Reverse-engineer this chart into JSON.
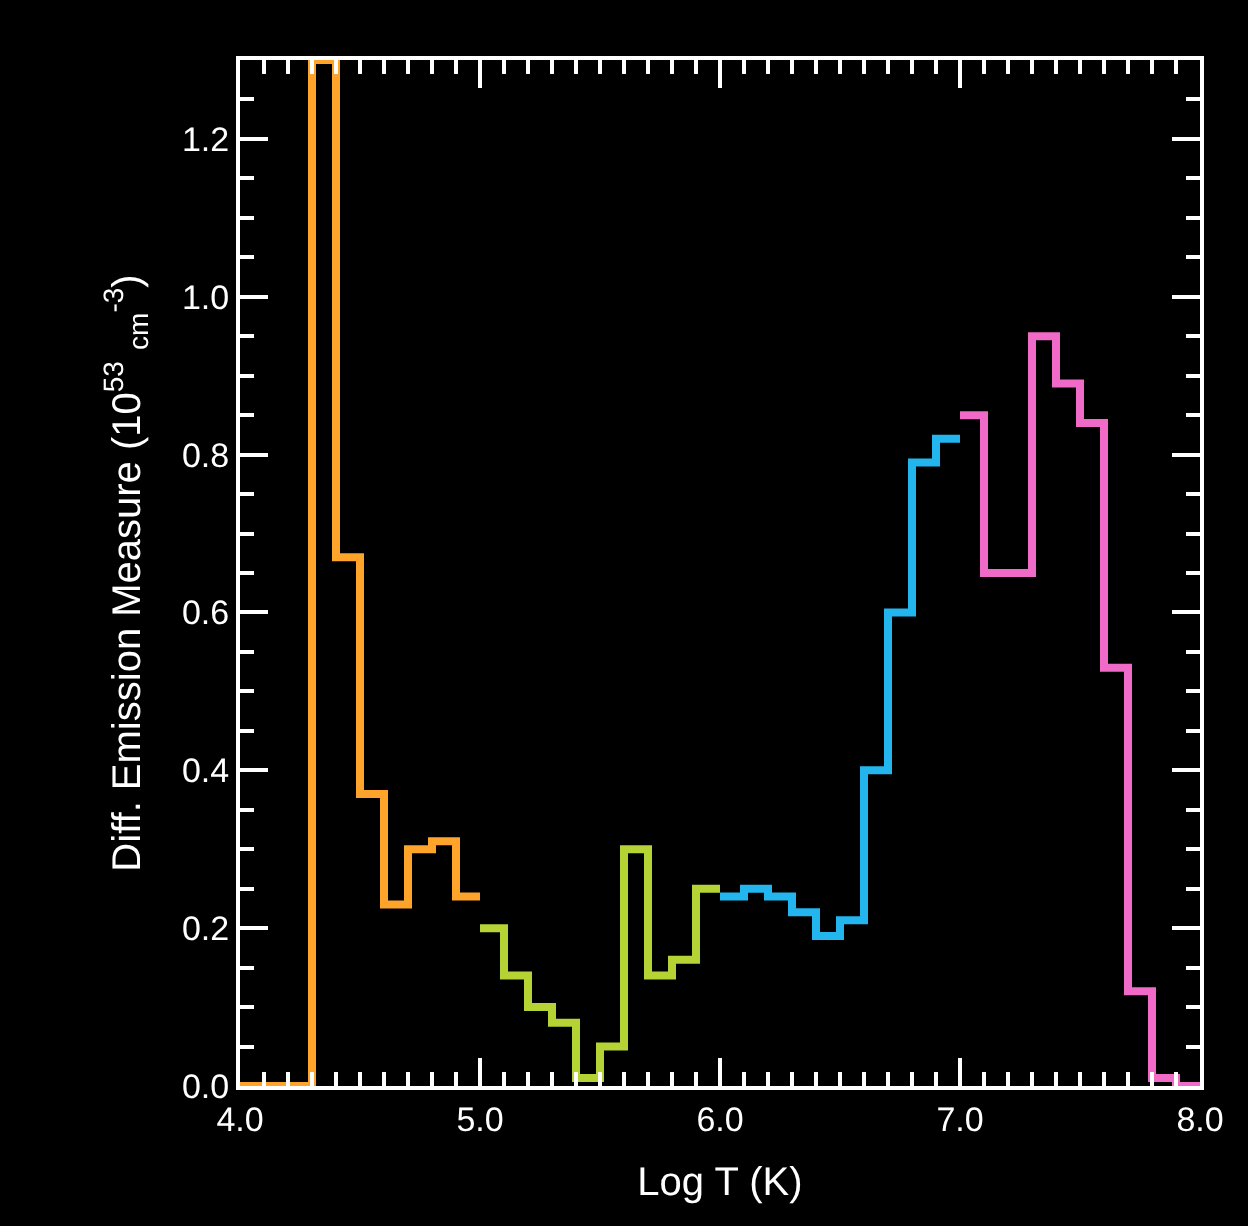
{
  "chart_data": {
    "type": "step",
    "xlabel": "Log T (K)",
    "ylabel": "Diff. Emission Measure (10$^{53}$ $_{cm}$$^{-3}$)",
    "xlim": [
      4.0,
      8.0
    ],
    "xticks": [
      {
        "value": 4,
        "label": "4.0"
      },
      {
        "value": 5,
        "label": "5.0"
      },
      {
        "value": 6,
        "label": "6.0"
      },
      {
        "value": 7,
        "label": "7.0"
      },
      {
        "value": 8,
        "label": "8.0"
      }
    ],
    "ylim": [
      0,
      1.3
    ],
    "yticks": [
      {
        "value": 0,
        "label": "0.0"
      },
      {
        "value": 0.2,
        "label": "0.2"
      },
      {
        "value": 0.4,
        "label": "0.4"
      },
      {
        "value": 0.6,
        "label": "0.6"
      },
      {
        "value": 0.8,
        "label": "0.8"
      },
      {
        "value": 1.0,
        "label": "1.0"
      },
      {
        "value": 1.2,
        "label": "1.2"
      }
    ],
    "marker": "none",
    "line_style": "solid",
    "series": [
      {
        "color": "#ffa42a",
        "x": [
          4.0,
          4.1,
          4.2,
          4.3,
          4.4,
          4.5,
          4.6,
          4.7,
          4.8,
          4.9,
          5.0
        ],
        "values": [
          0,
          0,
          0,
          1.3,
          0.67,
          0.37,
          0.23,
          0.3,
          0.31,
          0.24,
          0.24
        ]
      },
      {
        "color": "#b5d334",
        "x": [
          5.0,
          5.1,
          5.2,
          5.3,
          5.4,
          5.5,
          5.6,
          5.7,
          5.8,
          5.9,
          6.0
        ],
        "values": [
          0.2,
          0.14,
          0.1,
          0.08,
          0.01,
          0.05,
          0.3,
          0.14,
          0.16,
          0.25,
          0.25
        ]
      },
      {
        "color": "#22b5ee",
        "x": [
          6.0,
          6.1,
          6.2,
          6.3,
          6.4,
          6.5,
          6.6,
          6.7,
          6.8,
          6.9,
          7.0
        ],
        "values": [
          0.24,
          0.25,
          0.24,
          0.22,
          0.19,
          0.21,
          0.4,
          0.6,
          0.79,
          0.82,
          0.82
        ]
      },
      {
        "color": "#f06ac8",
        "x": [
          7.0,
          7.1,
          7.2,
          7.3,
          7.4,
          7.5,
          7.6,
          7.7,
          7.8,
          7.9,
          8.0
        ],
        "values": [
          0.85,
          0.65,
          0.65,
          0.95,
          0.89,
          0.84,
          0.53,
          0.12,
          0.01,
          0.0,
          0.0
        ]
      }
    ]
  }
}
